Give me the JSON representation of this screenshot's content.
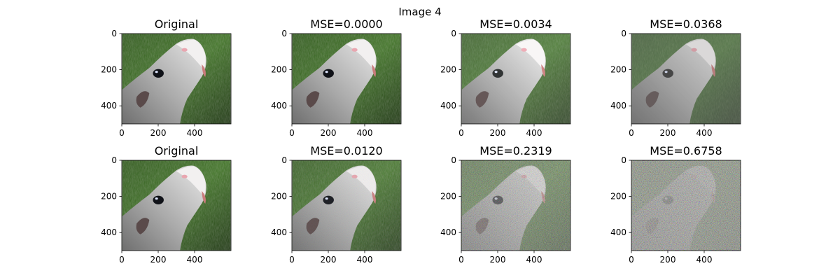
{
  "figure": {
    "suptitle": "Image 4"
  },
  "chart_data": [
    {
      "type": "image",
      "title": "Original",
      "distortion": "none",
      "xlim": [
        0,
        600
      ],
      "ylim": [
        500,
        0
      ],
      "xticks": [
        0,
        200,
        400
      ],
      "yticks": [
        0,
        200,
        400
      ]
    },
    {
      "type": "image",
      "title": "MSE=0.0000",
      "mse": 0.0,
      "distortion": "none",
      "xlim": [
        0,
        600
      ],
      "ylim": [
        500,
        0
      ],
      "xticks": [
        0,
        200,
        400
      ],
      "yticks": [
        0,
        200,
        400
      ]
    },
    {
      "type": "image",
      "title": "MSE=0.0034",
      "mse": 0.0034,
      "distortion": "brightness",
      "xlim": [
        0,
        600
      ],
      "ylim": [
        500,
        0
      ],
      "xticks": [
        0,
        200,
        400
      ],
      "yticks": [
        0,
        200,
        400
      ]
    },
    {
      "type": "image",
      "title": "MSE=0.0368",
      "mse": 0.0368,
      "distortion": "contrast",
      "xlim": [
        0,
        600
      ],
      "ylim": [
        500,
        0
      ],
      "xticks": [
        0,
        200,
        400
      ],
      "yticks": [
        0,
        200,
        400
      ]
    },
    {
      "type": "image",
      "title": "Original",
      "distortion": "none",
      "xlim": [
        0,
        600
      ],
      "ylim": [
        500,
        0
      ],
      "xticks": [
        0,
        200,
        400
      ],
      "yticks": [
        0,
        200,
        400
      ]
    },
    {
      "type": "image",
      "title": "MSE=0.0120",
      "mse": 0.012,
      "distortion": "noise",
      "noise_level": 0.1,
      "xlim": [
        0,
        600
      ],
      "ylim": [
        500,
        0
      ],
      "xticks": [
        0,
        200,
        400
      ],
      "yticks": [
        0,
        200,
        400
      ]
    },
    {
      "type": "image",
      "title": "MSE=0.2319",
      "mse": 0.2319,
      "distortion": "noise",
      "noise_level": 0.55,
      "xlim": [
        0,
        600
      ],
      "ylim": [
        500,
        0
      ],
      "xticks": [
        0,
        200,
        400
      ],
      "yticks": [
        0,
        200,
        400
      ]
    },
    {
      "type": "image",
      "title": "MSE=0.6758",
      "mse": 0.6758,
      "distortion": "noise",
      "noise_level": 0.92,
      "xlim": [
        0,
        600
      ],
      "ylim": [
        500,
        0
      ],
      "xticks": [
        0,
        200,
        400
      ],
      "yticks": [
        0,
        200,
        400
      ]
    }
  ]
}
